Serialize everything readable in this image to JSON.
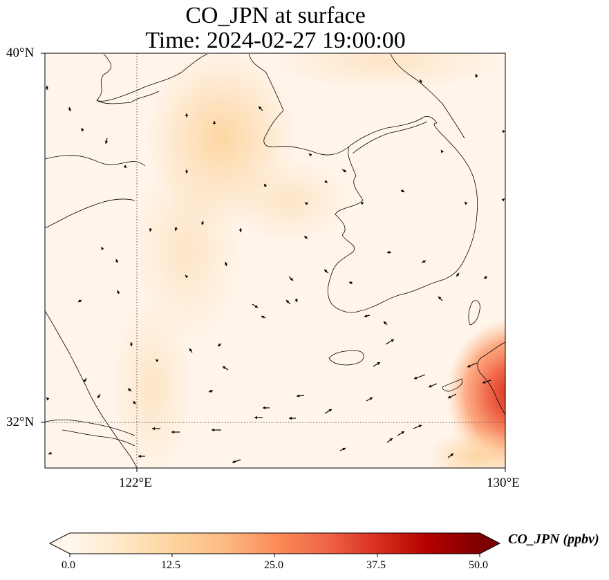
{
  "title": {
    "line1": "CO_JPN at surface",
    "line2": "Time: 2024-02-27 19:00:00"
  },
  "map": {
    "lon_range": [
      120,
      130
    ],
    "lat_range": [
      31,
      40
    ],
    "lon_ticks": [
      {
        "value": 122,
        "label": "122°E"
      },
      {
        "value": 130,
        "label": "130°E"
      }
    ],
    "lat_ticks": [
      {
        "value": 40,
        "label": "40°N"
      },
      {
        "value": 32,
        "label": "32°N"
      }
    ],
    "gridlines": "dotted",
    "field_colors": {
      "background": "#fff5eb",
      "plume": "#fdd9a9",
      "hotspot": "#e2452b"
    }
  },
  "colorbar": {
    "label": "CO_JPN (ppbv)",
    "range": [
      0,
      50
    ],
    "extend": "both",
    "colormap": "OrRd",
    "ticks": [
      {
        "value": 0,
        "label": "0.0"
      },
      {
        "value": 12.5,
        "label": "12.5"
      },
      {
        "value": 25,
        "label": "25.0"
      },
      {
        "value": 37.5,
        "label": "37.5"
      },
      {
        "value": 50,
        "label": "50.0"
      }
    ]
  }
}
